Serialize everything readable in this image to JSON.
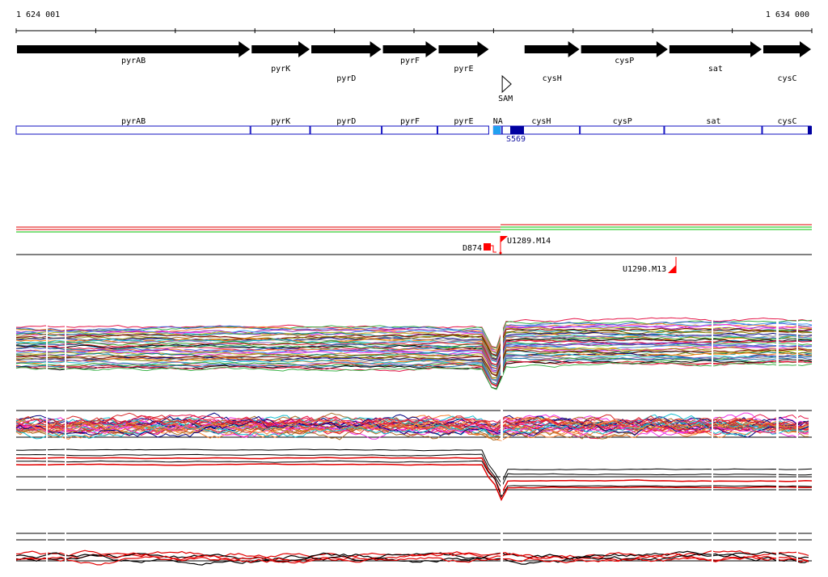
{
  "coords": {
    "start": "1 624 001",
    "end": "1 634 000"
  },
  "genes": [
    {
      "name": "pyrAB",
      "start": 1624001,
      "end": 1626950
    },
    {
      "name": "pyrK",
      "start": 1626950,
      "end": 1627700
    },
    {
      "name": "pyrD",
      "start": 1627700,
      "end": 1628600
    },
    {
      "name": "pyrF",
      "start": 1628600,
      "end": 1629300
    },
    {
      "name": "pyrE",
      "start": 1629300,
      "end": 1629950
    },
    {
      "name": "cysH",
      "start": 1630380,
      "end": 1631090
    },
    {
      "name": "cysP",
      "start": 1631090,
      "end": 1632200
    },
    {
      "name": "sat",
      "start": 1632200,
      "end": 1633380
    },
    {
      "name": "cysC",
      "start": 1633380,
      "end": 1634000
    }
  ],
  "riboswitch": {
    "label": "SAM",
    "pos": 1630150
  },
  "segments": [
    {
      "label": "pyrAB",
      "start": 1624001,
      "end": 1626950
    },
    {
      "label": "pyrK",
      "start": 1626950,
      "end": 1627700
    },
    {
      "label": "pyrD",
      "start": 1627700,
      "end": 1628600
    },
    {
      "label": "pyrF",
      "start": 1628600,
      "end": 1629300
    },
    {
      "label": "pyrE",
      "start": 1629300,
      "end": 1629950
    },
    {
      "label": "NA",
      "start": 1630000,
      "end": 1630110
    },
    {
      "label": "cysH",
      "start": 1630110,
      "end": 1631090
    },
    {
      "label": "cysP",
      "start": 1631090,
      "end": 1632150
    },
    {
      "label": "sat",
      "start": 1632150,
      "end": 1633380
    },
    {
      "label": "cysC",
      "start": 1633380,
      "end": 1634000
    }
  ],
  "segment_marks": [
    {
      "label": "S569"
    }
  ],
  "markers": [
    {
      "label": "D874"
    },
    {
      "label": "U1289.M14"
    },
    {
      "label": "U1290.M13"
    }
  ],
  "colors": {
    "gene_arrow": "#000000",
    "segment_border": "#1010c0",
    "segment_light": "#20a0f0",
    "segment_dark": "#0000a0",
    "marker": "#ff0000",
    "line_red": "#e00000",
    "line_green": "#00c000"
  },
  "expression_palette": [
    "#e6194b",
    "#3cb44b",
    "#4363d8",
    "#f58231",
    "#911eb4",
    "#46a0f0",
    "#f032e6",
    "#bcbd22",
    "#008080",
    "#aa6e28",
    "#800000",
    "#808000",
    "#000080",
    "#808080",
    "#ff7f0e",
    "#17becf",
    "#9467bd",
    "#2ca02c",
    "#d62728",
    "#1f77b4",
    "#000000"
  ]
}
